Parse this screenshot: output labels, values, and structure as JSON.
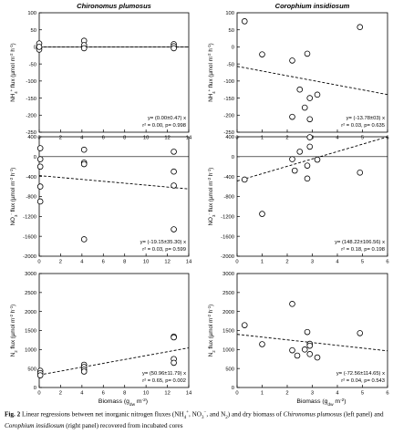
{
  "column_titles": [
    "Chironomus plumosus",
    "Corophium insidiosum"
  ],
  "caption": {
    "label": "Fig. 2",
    "text": "Linear regressions between net inorganic nitrogen fluxes (NH4+, NO3−, and N2) and dry biomass of Chironomus plumosus (left panel) and Corophium insidiosum (right panel) recovered from incubated cores",
    "segments": [
      {
        "t": "Fig. 2",
        "s": "label"
      },
      {
        "t": "  Linear regressions between net inorganic nitrogen fluxes (NH"
      },
      {
        "t": "4",
        "s": "sub"
      },
      {
        "t": "+",
        "s": "sup"
      },
      {
        "t": ", NO"
      },
      {
        "t": "3",
        "s": "sub"
      },
      {
        "t": "−",
        "s": "sup"
      },
      {
        "t": ", and N"
      },
      {
        "t": "2",
        "s": "sub"
      },
      {
        "t": ") and dry biomass of "
      },
      {
        "t": "Chironomus plumosus",
        "s": "i"
      },
      {
        "t": " (left panel) and "
      },
      {
        "t": "Corophium insidiosum",
        "s": "i"
      },
      {
        "t": " (right panel) recovered from incubated cores"
      }
    ]
  },
  "chart_data": [
    {
      "type": "scatter",
      "panel": "NH4-Chironomus",
      "title": "Chironomus plumosus",
      "ylabel": "NH4+ flux (µmol m-2 h-1)",
      "ylabel_parts": [
        [
          "NH",
          "n"
        ],
        [
          "4",
          "sub"
        ],
        [
          "+",
          "sup"
        ],
        [
          " flux (µmol m",
          "n"
        ],
        [
          "-2",
          "sup"
        ],
        [
          " h",
          "n"
        ],
        [
          "-1",
          "sup"
        ],
        [
          ")",
          "n"
        ]
      ],
      "xlabel": "",
      "xlim": [
        0,
        14
      ],
      "ylim": [
        -250,
        100
      ],
      "xticks": [
        0,
        2,
        4,
        6,
        8,
        10,
        12,
        14
      ],
      "yticks": [
        -250,
        -200,
        -150,
        -100,
        -50,
        0,
        50,
        100
      ],
      "zero_line": true,
      "points": [
        [
          0,
          10
        ],
        [
          0,
          -3
        ],
        [
          0,
          -8
        ],
        [
          0,
          0
        ],
        [
          4.2,
          18
        ],
        [
          4.2,
          5
        ],
        [
          4.2,
          -4
        ],
        [
          12.6,
          8
        ],
        [
          12.6,
          2
        ],
        [
          12.6,
          -4
        ]
      ],
      "fit": {
        "slope": 0.0,
        "intercept": 0
      },
      "equation": "y= (0.00±0.47) x",
      "stats": "r² = 0.00, p= 0.998"
    },
    {
      "type": "scatter",
      "panel": "NH4-Corophium",
      "title": "Corophium insidiosum",
      "ylabel": "NH4+ flux (µmol m-2 h-1)",
      "ylabel_parts": [
        [
          "NH",
          "n"
        ],
        [
          "4",
          "sub"
        ],
        [
          "+",
          "sup"
        ],
        [
          " flux (µmol m",
          "n"
        ],
        [
          "-2",
          "sup"
        ],
        [
          " h",
          "n"
        ],
        [
          "-1",
          "sup"
        ],
        [
          ")",
          "n"
        ]
      ],
      "xlabel": "",
      "xlim": [
        0,
        6
      ],
      "ylim": [
        -250,
        100
      ],
      "xticks": [
        0,
        1,
        2,
        3,
        4,
        5,
        6
      ],
      "yticks": [
        -250,
        -200,
        -150,
        -100,
        -50,
        0,
        50,
        100
      ],
      "zero_line": false,
      "points": [
        [
          0.3,
          75
        ],
        [
          1.0,
          -22
        ],
        [
          2.2,
          -40
        ],
        [
          2.5,
          -125
        ],
        [
          2.8,
          -20
        ],
        [
          2.2,
          -205
        ],
        [
          2.7,
          -178
        ],
        [
          2.9,
          -150
        ],
        [
          3.2,
          -140
        ],
        [
          2.9,
          -212
        ],
        [
          4.9,
          58
        ]
      ],
      "fit": {
        "slope": -13.78,
        "intercept": -57
      },
      "equation": "y= (-13.78±03) x",
      "stats": "r² = 0.03, p= 0.635"
    },
    {
      "type": "scatter",
      "panel": "NO3-Chironomus",
      "title": "",
      "ylabel": "NO3- flux (µmol m-2 h-1)",
      "ylabel_parts": [
        [
          "NO",
          "n"
        ],
        [
          "3",
          "sub"
        ],
        [
          "-",
          "sup"
        ],
        [
          " flux (µmol m",
          "n"
        ],
        [
          "-2",
          "sup"
        ],
        [
          " h",
          "n"
        ],
        [
          "-1",
          "sup"
        ],
        [
          ")",
          "n"
        ]
      ],
      "xlabel": "",
      "xlim": [
        0,
        14
      ],
      "ylim": [
        -2000,
        400
      ],
      "xticks": [
        0,
        2,
        4,
        6,
        8,
        10,
        12,
        14
      ],
      "yticks": [
        -2000,
        -1600,
        -1200,
        -800,
        -400,
        0,
        400
      ],
      "zero_line": true,
      "points": [
        [
          0.1,
          170
        ],
        [
          0.1,
          -50
        ],
        [
          0.1,
          -200
        ],
        [
          0.1,
          -900
        ],
        [
          0.1,
          -600
        ],
        [
          4.2,
          140
        ],
        [
          4.2,
          -120
        ],
        [
          4.2,
          -150
        ],
        [
          4.2,
          -1660
        ],
        [
          12.6,
          100
        ],
        [
          12.6,
          -300
        ],
        [
          12.6,
          -580
        ],
        [
          12.6,
          -1460
        ]
      ],
      "fit": {
        "slope": -19.15,
        "intercept": -380
      },
      "equation": "y= (-19.15±35.30) x",
      "stats": "r² = 0.03, p= 0.599"
    },
    {
      "type": "scatter",
      "panel": "NO3-Corophium",
      "title": "",
      "ylabel": "NO3- flux (µmol m-2 h-1)",
      "ylabel_parts": [
        [
          "NO",
          "n"
        ],
        [
          "3",
          "sub"
        ],
        [
          "-",
          "sup"
        ],
        [
          " flux (µmol m",
          "n"
        ],
        [
          "-2",
          "sup"
        ],
        [
          " h",
          "n"
        ],
        [
          "-1",
          "sup"
        ],
        [
          ")",
          "n"
        ]
      ],
      "xlabel": "",
      "xlim": [
        0,
        6
      ],
      "ylim": [
        -2000,
        400
      ],
      "xticks": [
        0,
        1,
        2,
        3,
        4,
        5,
        6
      ],
      "yticks": [
        -2000,
        -1600,
        -1200,
        -800,
        -400,
        0,
        400
      ],
      "zero_line": true,
      "points": [
        [
          0.3,
          -460
        ],
        [
          1.0,
          -1150
        ],
        [
          2.2,
          -50
        ],
        [
          2.3,
          -280
        ],
        [
          2.5,
          100
        ],
        [
          2.9,
          200
        ],
        [
          2.9,
          390
        ],
        [
          2.8,
          -180
        ],
        [
          3.2,
          -60
        ],
        [
          2.8,
          -440
        ],
        [
          4.9,
          -320
        ]
      ],
      "fit": {
        "slope": 148.22,
        "intercept": -490
      },
      "equation": "y= (148.22±106.56) x",
      "stats": "r² = 0.18, p= 0.198"
    },
    {
      "type": "scatter",
      "panel": "N2-Chironomus",
      "title": "",
      "ylabel": "N2 flux (µmol m-2 h-1)",
      "ylabel_parts": [
        [
          "N",
          "n"
        ],
        [
          "2",
          "sub"
        ],
        [
          " flux (µmol m",
          "n"
        ],
        [
          "-2",
          "sup"
        ],
        [
          " h",
          "n"
        ],
        [
          "-1",
          "sup"
        ],
        [
          ")",
          "n"
        ]
      ],
      "xlabel": "Biomass (gdw m-2)",
      "xlabel_parts": [
        [
          "Biomass (g",
          "n"
        ],
        [
          "dw",
          "sub"
        ],
        [
          " m",
          "n"
        ],
        [
          "-2",
          "sup"
        ],
        [
          ")",
          "n"
        ]
      ],
      "xlim": [
        0,
        14
      ],
      "ylim": [
        0,
        3000
      ],
      "xticks": [
        0,
        2,
        4,
        6,
        8,
        10,
        12,
        14
      ],
      "yticks": [
        0,
        500,
        1000,
        1500,
        2000,
        2500,
        3000
      ],
      "zero_line": false,
      "points": [
        [
          0.1,
          440
        ],
        [
          0.1,
          380
        ],
        [
          0.1,
          320
        ],
        [
          4.2,
          600
        ],
        [
          4.2,
          540
        ],
        [
          4.2,
          470
        ],
        [
          4.2,
          420
        ],
        [
          12.6,
          1340
        ],
        [
          12.6,
          1320
        ],
        [
          12.6,
          750
        ],
        [
          12.6,
          650
        ]
      ],
      "fit": {
        "slope": 50.96,
        "intercept": 330
      },
      "equation": "y= (50.96±11.79) x",
      "stats": "r² = 0.65, p= 0.002"
    },
    {
      "type": "scatter",
      "panel": "N2-Corophium",
      "title": "",
      "ylabel": "N2 flux (µmol m-2 h-1)",
      "ylabel_parts": [
        [
          "N",
          "n"
        ],
        [
          "2",
          "sub"
        ],
        [
          " flux (µmol m",
          "n"
        ],
        [
          "-2",
          "sup"
        ],
        [
          " h",
          "n"
        ],
        [
          "-1",
          "sup"
        ],
        [
          ")",
          "n"
        ]
      ],
      "xlabel": "Biomass (gdw m-2)",
      "xlabel_parts": [
        [
          "Biomass (g",
          "n"
        ],
        [
          "dw",
          "sub"
        ],
        [
          " m",
          "n"
        ],
        [
          "-2",
          "sup"
        ],
        [
          ")",
          "n"
        ]
      ],
      "xlim": [
        0,
        6
      ],
      "ylim": [
        0,
        3000
      ],
      "xticks": [
        0,
        1,
        2,
        3,
        4,
        5,
        6
      ],
      "yticks": [
        0,
        500,
        1000,
        1500,
        2000,
        2500,
        3000
      ],
      "zero_line": false,
      "points": [
        [
          0.3,
          1640
        ],
        [
          1.0,
          1140
        ],
        [
          2.2,
          2200
        ],
        [
          2.2,
          980
        ],
        [
          2.4,
          840
        ],
        [
          2.8,
          1460
        ],
        [
          2.7,
          1000
        ],
        [
          2.9,
          1150
        ],
        [
          2.9,
          1100
        ],
        [
          2.9,
          880
        ],
        [
          3.2,
          790
        ],
        [
          4.9,
          1430
        ]
      ],
      "fit": {
        "slope": -72.56,
        "intercept": 1400
      },
      "equation": "y= (-72.56±114.65) x",
      "stats": "r² = 0.04, p= 0.543"
    }
  ]
}
